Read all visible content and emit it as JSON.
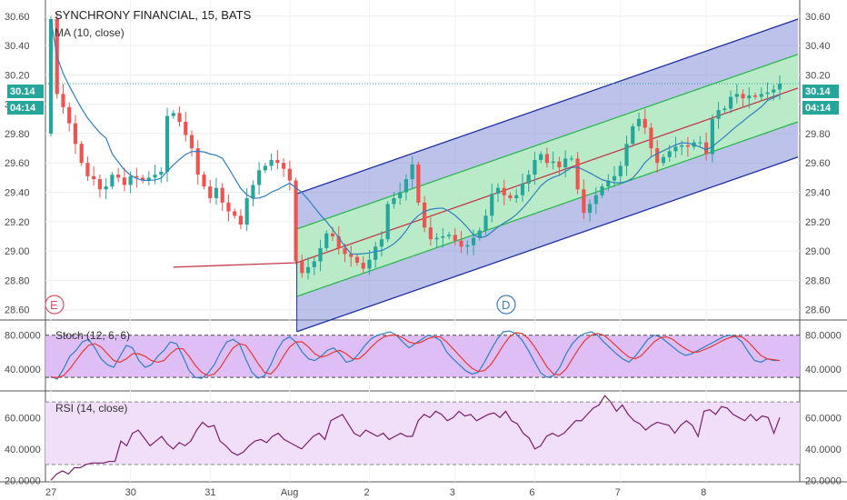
{
  "header": {
    "title": "SYNCHRONY FINANCIAL, 15, BATS",
    "ma_label": "MA (10, close)"
  },
  "price_badge": {
    "price": "30.14",
    "countdown": "04:14"
  },
  "markers": {
    "earnings": "E",
    "dividend": "D"
  },
  "colors": {
    "up": "#26a69a",
    "down": "#ef5350",
    "ma": "#2f7fc1",
    "channel_outer_line": "#1f2fa8",
    "channel_outer_fill": "#7b86d6",
    "channel_inner_line": "#2db84f",
    "channel_inner_fill": "#b9efc4",
    "regression_line": "#c23a4a",
    "stoch_k": "#2f7fc1",
    "stoch_d": "#e53935",
    "stoch_band": "#d9b3f5",
    "rsi_line": "#7a1f6a",
    "rsi_band": "#f1def9",
    "price_line": "#26a69a"
  },
  "chart_data": [
    {
      "type": "candlestick",
      "title": "SYNCHRONY FINANCIAL, 15, BATS",
      "x_ticks": [
        "27",
        "30",
        "31",
        "Aug",
        "2",
        "3",
        "6",
        "7",
        "8"
      ],
      "y_ticks": [
        "28.60",
        "28.80",
        "29.00",
        "29.20",
        "29.40",
        "29.60",
        "29.80",
        "30.00",
        "30.20",
        "30.40",
        "30.60"
      ],
      "ylim": [
        28.53,
        30.71
      ],
      "last_price": 30.14,
      "closes": [
        30.58,
        30.07,
        29.98,
        29.87,
        29.73,
        29.6,
        29.51,
        29.49,
        29.42,
        29.44,
        29.52,
        29.5,
        29.45,
        29.51,
        29.5,
        29.48,
        29.5,
        29.52,
        29.54,
        29.92,
        29.94,
        29.88,
        29.79,
        29.7,
        29.52,
        29.44,
        29.36,
        29.43,
        29.33,
        29.27,
        29.24,
        29.18,
        29.36,
        29.45,
        29.55,
        29.58,
        29.62,
        29.6,
        29.56,
        29.48,
        28.93,
        28.85,
        28.89,
        28.93,
        29.02,
        29.12,
        29.1,
        29.02,
        28.98,
        28.96,
        28.92,
        28.88,
        28.94,
        29.03,
        29.08,
        29.32,
        29.36,
        29.4,
        29.49,
        29.59,
        29.33,
        29.16,
        29.08,
        29.09,
        29.1,
        29.11,
        29.07,
        29.03,
        29.04,
        29.09,
        29.14,
        29.24,
        29.39,
        29.43,
        29.38,
        29.36,
        29.38,
        29.46,
        29.52,
        29.62,
        29.66,
        29.6,
        29.61,
        29.57,
        29.63,
        29.63,
        29.42,
        29.26,
        29.32,
        29.38,
        29.44,
        29.48,
        29.51,
        29.58,
        29.73,
        29.85,
        29.9,
        29.84,
        29.7,
        29.6,
        29.64,
        29.68,
        29.71,
        29.72,
        29.71,
        29.74,
        29.74,
        29.66,
        29.9,
        29.96,
        29.97,
        30.05,
        30.07,
        30.04,
        30.06,
        30.05,
        30.07,
        30.08,
        30.1,
        30.14
      ]
    },
    {
      "type": "line",
      "title": "Stoch (12, 6, 6)",
      "y_ticks": [
        "40.0000",
        "80.0000"
      ],
      "ylim": [
        14,
        98
      ],
      "band": [
        30,
        80
      ],
      "series": [
        {
          "name": "Stoch (12, 6, 6)",
          "values": [
            31,
            28,
            40,
            55,
            62,
            72,
            75,
            65,
            52,
            45,
            42,
            55,
            68,
            65,
            50,
            42,
            45,
            55,
            62,
            72,
            70,
            55,
            38,
            30,
            29,
            35,
            45,
            60,
            72,
            75,
            70,
            52,
            36,
            29,
            32,
            45,
            62,
            74,
            78,
            72,
            60,
            52,
            50,
            55,
            62,
            65,
            58,
            48,
            50,
            58,
            68,
            76,
            80,
            82,
            84,
            80,
            72,
            65,
            70,
            75,
            80,
            78,
            74,
            60,
            52,
            45,
            38,
            34,
            36,
            48,
            62,
            75,
            84,
            85,
            82,
            74,
            62,
            48,
            35,
            30,
            32,
            42,
            58,
            70,
            78,
            82,
            84,
            80,
            72,
            65,
            58,
            52,
            48,
            55,
            65,
            75,
            80,
            78,
            72,
            66,
            60,
            56,
            58,
            62,
            66,
            70,
            74,
            78,
            80,
            78,
            72,
            60,
            50,
            48,
            52,
            50,
            50
          ]
        },
        {
          "name": "Stoch (12, 6, 6)",
          "values": [
            30,
            30,
            32,
            40,
            50,
            60,
            68,
            70,
            66,
            58,
            50,
            48,
            52,
            58,
            58,
            55,
            50,
            48,
            50,
            58,
            64,
            64,
            55,
            44,
            36,
            32,
            34,
            42,
            54,
            65,
            70,
            68,
            58,
            46,
            36,
            34,
            42,
            55,
            66,
            72,
            72,
            66,
            58,
            54,
            56,
            60,
            62,
            58,
            52,
            52,
            58,
            66,
            73,
            78,
            80,
            80,
            77,
            72,
            70,
            72,
            76,
            78,
            78,
            72,
            64,
            56,
            48,
            41,
            37,
            38,
            45,
            56,
            68,
            78,
            83,
            82,
            76,
            66,
            54,
            42,
            34,
            33,
            40,
            52,
            64,
            74,
            80,
            82,
            80,
            74,
            67,
            60,
            54,
            52,
            56,
            64,
            72,
            77,
            78,
            75,
            69,
            64,
            60,
            60,
            63,
            66,
            70,
            74,
            77,
            79,
            78,
            72,
            64,
            56,
            52,
            51,
            50
          ]
        }
      ]
    },
    {
      "type": "line",
      "title": "RSI (14, close)",
      "y_ticks": [
        "20.0000",
        "40.0000",
        "60.0000"
      ],
      "ylim": [
        19,
        77
      ],
      "band": [
        30,
        70
      ],
      "series": [
        {
          "name": "RSI (14, close)",
          "values": [
            20,
            24,
            26,
            24,
            28,
            28,
            30,
            31,
            31,
            31,
            32,
            32,
            45,
            42,
            50,
            52,
            47,
            42,
            45,
            48,
            43,
            40,
            44,
            42,
            45,
            52,
            57,
            54,
            55,
            45,
            42,
            38,
            36,
            38,
            42,
            45,
            46,
            44,
            48,
            50,
            46,
            44,
            42,
            40,
            44,
            48,
            50,
            46,
            58,
            60,
            62,
            56,
            50,
            48,
            52,
            50,
            48,
            50,
            46,
            48,
            50,
            48,
            48,
            58,
            62,
            60,
            64,
            62,
            58,
            60,
            64,
            61,
            62,
            58,
            60,
            62,
            63,
            60,
            64,
            58,
            56,
            50,
            47,
            40,
            42,
            48,
            50,
            48,
            50,
            54,
            58,
            58,
            62,
            66,
            68,
            74,
            70,
            64,
            68,
            62,
            58,
            56,
            52,
            55,
            57,
            56,
            55,
            50,
            55,
            58,
            55,
            48,
            64,
            65,
            62,
            67,
            66,
            62,
            60,
            58,
            62,
            58,
            61,
            60,
            50,
            60
          ]
        }
      ]
    }
  ]
}
